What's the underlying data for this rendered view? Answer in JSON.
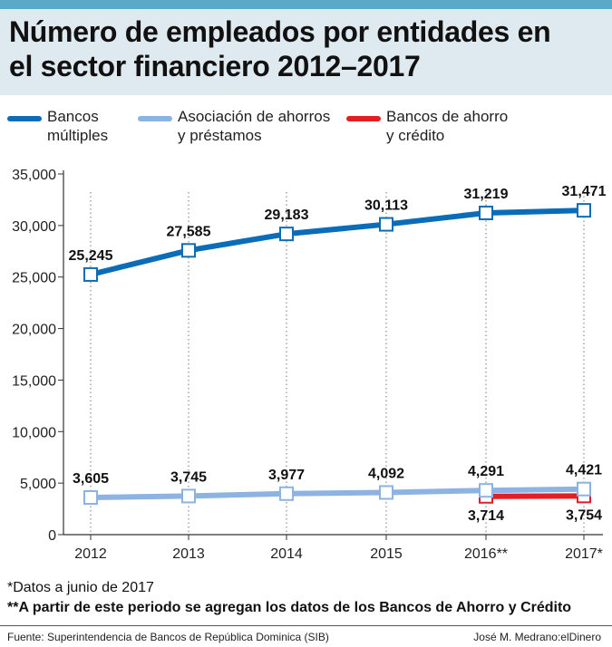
{
  "header": {
    "title_line1": "Número de empleados por entidades en",
    "title_line2": "el sector financiero 2012–2017"
  },
  "legend": [
    {
      "line1": "Bancos",
      "line2": "múltiples",
      "color": "#0b6cb8"
    },
    {
      "line1": "Asociación de ahorros",
      "line2": "y préstamos",
      "color": "#8db3e2"
    },
    {
      "line1": "Bancos de ahorro",
      "line2": "y crédito",
      "color": "#e31e24"
    }
  ],
  "chart_data": {
    "type": "line",
    "categories": [
      "2012",
      "2013",
      "2014",
      "2015",
      "2016**",
      "2017*"
    ],
    "ylim": [
      0,
      35000
    ],
    "yticks": [
      0,
      5000,
      10000,
      15000,
      20000,
      25000,
      30000,
      35000
    ],
    "ytick_labels": [
      "0",
      "5,000",
      "10,000",
      "15,000",
      "20,000",
      "25,000",
      "30,000",
      "35,000"
    ],
    "xlabel": "",
    "ylabel": "",
    "grid": "vertical dotted",
    "series": [
      {
        "name": "Bancos múltiples",
        "color": "#0b6cb8",
        "values": [
          25245,
          27585,
          29183,
          30113,
          31219,
          31471
        ],
        "labels": [
          "25,245",
          "27,585",
          "29,183",
          "30,113",
          "31,219",
          "31,471"
        ]
      },
      {
        "name": "Asociación de ahorros y préstamos",
        "color": "#8db3e2",
        "values": [
          3605,
          3745,
          3977,
          4092,
          4291,
          4421
        ],
        "labels": [
          "3,605",
          "3,745",
          "3,977",
          "4,092",
          "4,291",
          "4,421"
        ]
      },
      {
        "name": "Bancos de ahorro y crédito",
        "color": "#e31e24",
        "values": [
          null,
          null,
          null,
          null,
          3714,
          3754
        ],
        "labels": [
          "",
          "",
          "",
          "",
          "3,714",
          "3,754"
        ]
      }
    ]
  },
  "notes": {
    "note1": "*Datos a junio de 2017",
    "note2": "**A partir de este periodo se agregan los datos de los Bancos de Ahorro y Crédito"
  },
  "footer": {
    "source": "Fuente: Superintendencia de Bancos de República Dominica (SIB)",
    "credit": "José M. Medrano:elDinero"
  }
}
